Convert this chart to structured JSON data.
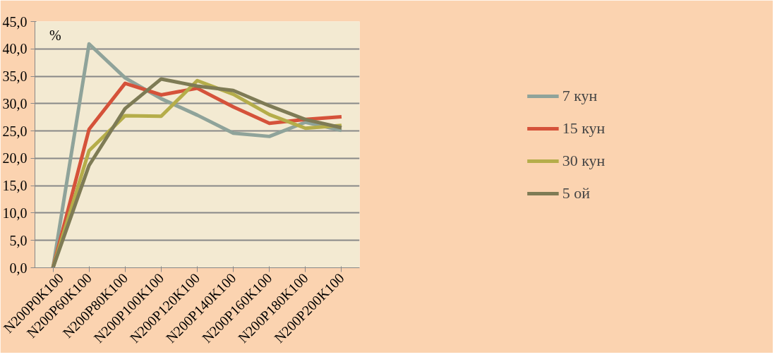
{
  "chart_data": {
    "type": "line",
    "ylabel": "%",
    "categories": [
      "N200P0K100",
      "N200P60K100",
      "N200P80K100",
      "N200P100K100",
      "N200P120K100",
      "N200P140K100",
      "N200P160K100",
      "N200P180K100",
      "N200P200K100"
    ],
    "series": [
      {
        "name": "7 кун",
        "color": "#8fa39a",
        "values": [
          0,
          40.9,
          34.7,
          30.9,
          27.9,
          24.6,
          24.0,
          26.6,
          25.1
        ]
      },
      {
        "name": "15 кун",
        "color": "#d5523a",
        "values": [
          0,
          25.3,
          33.7,
          31.6,
          32.8,
          29.4,
          26.4,
          27.1,
          27.6
        ]
      },
      {
        "name": "30 кун",
        "color": "#b5ad4a",
        "values": [
          0,
          21.4,
          27.8,
          27.7,
          34.2,
          31.7,
          28.0,
          25.5,
          26.0
        ]
      },
      {
        "name": "5 ой",
        "color": "#7e7b55",
        "values": [
          0,
          18.7,
          29.1,
          34.5,
          33.2,
          32.4,
          29.6,
          27.1,
          25.6
        ]
      }
    ],
    "ylim": [
      0,
      45
    ],
    "yticks": [
      {
        "value": 0,
        "label": "0,0"
      },
      {
        "value": 5,
        "label": "5,0"
      },
      {
        "value": 10,
        "label": "10,0"
      },
      {
        "value": 15,
        "label": "15,0"
      },
      {
        "value": 20,
        "label": "20,0"
      },
      {
        "value": 25,
        "label": "25,0"
      },
      {
        "value": 30,
        "label": "30,0"
      },
      {
        "value": 35,
        "label": "35,0"
      },
      {
        "value": 40,
        "label": "40,0"
      },
      {
        "value": 45,
        "label": "45,0"
      }
    ],
    "grid": "y",
    "legend": "right",
    "line_style": "solid",
    "marker": "none"
  }
}
